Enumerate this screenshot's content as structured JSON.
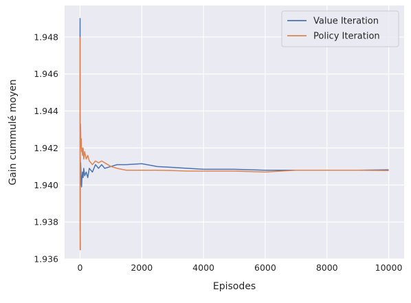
{
  "chart_data": {
    "type": "line",
    "title": "",
    "xlabel": "Episodes",
    "ylabel": "Gain cummulé moyen",
    "xlim": [
      -500,
      10500
    ],
    "ylim": [
      1.936,
      1.9497
    ],
    "x_ticks": [
      0,
      2000,
      4000,
      6000,
      8000,
      10000
    ],
    "x_tick_labels": [
      "0",
      "2000",
      "4000",
      "6000",
      "8000",
      "10000"
    ],
    "y_ticks": [
      1.936,
      1.938,
      1.94,
      1.942,
      1.944,
      1.946,
      1.948
    ],
    "y_tick_labels": [
      "1.936",
      "1.938",
      "1.940",
      "1.942",
      "1.944",
      "1.946",
      "1.948"
    ],
    "grid": true,
    "legend_position": "top-right",
    "background_color": "#EAEAF2",
    "series": [
      {
        "name": "Value Iteration",
        "color": "#4C72B0",
        "x": [
          0,
          2,
          4,
          6,
          8,
          10,
          15,
          20,
          30,
          40,
          50,
          60,
          80,
          100,
          120,
          150,
          200,
          250,
          300,
          400,
          500,
          600,
          700,
          800,
          1000,
          1200,
          1500,
          2000,
          2500,
          3000,
          3500,
          4000,
          5000,
          6000,
          7000,
          8000,
          9000,
          10000
        ],
        "y": [
          1.948,
          1.949,
          1.9375,
          1.943,
          1.9365,
          1.9415,
          1.9405,
          1.9412,
          1.9407,
          1.9401,
          1.9399,
          1.9403,
          1.9407,
          1.9404,
          1.9409,
          1.9405,
          1.9407,
          1.9404,
          1.9409,
          1.9407,
          1.9411,
          1.9409,
          1.9411,
          1.9409,
          1.941,
          1.9411,
          1.9411,
          1.94115,
          1.941,
          1.94095,
          1.9409,
          1.94085,
          1.94085,
          1.9408,
          1.9408,
          1.9408,
          1.9408,
          1.94082
        ]
      },
      {
        "name": "Policy Iteration",
        "color": "#DD8452",
        "x": [
          0,
          2,
          4,
          6,
          8,
          10,
          15,
          20,
          30,
          40,
          50,
          60,
          80,
          100,
          120,
          150,
          200,
          250,
          300,
          400,
          500,
          600,
          700,
          800,
          1000,
          1200,
          1500,
          2000,
          2500,
          3000,
          3500,
          4000,
          5000,
          6000,
          7000,
          8000,
          9000,
          10000
        ],
        "y": [
          1.948,
          1.9365,
          1.946,
          1.937,
          1.9415,
          1.9428,
          1.9433,
          1.943,
          1.942,
          1.9425,
          1.9418,
          1.942,
          1.9416,
          1.942,
          1.9414,
          1.9418,
          1.9414,
          1.9416,
          1.9413,
          1.9411,
          1.9413,
          1.9412,
          1.9413,
          1.9412,
          1.941,
          1.9409,
          1.9408,
          1.9408,
          1.9408,
          1.94078,
          1.94075,
          1.94075,
          1.94075,
          1.9407,
          1.9408,
          1.9408,
          1.9408,
          1.94078
        ]
      }
    ]
  }
}
